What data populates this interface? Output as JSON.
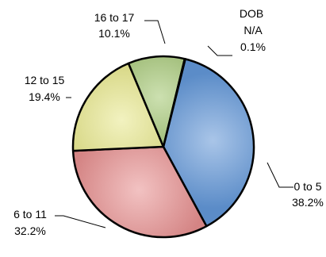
{
  "chart_data": {
    "type": "pie",
    "title": "",
    "slices": [
      {
        "name": "0 to 5",
        "value": 38.2,
        "label": "38.2%",
        "color": "#5B8CC8",
        "highlight": "#A9C5E8"
      },
      {
        "name": "6 to 11",
        "value": 32.2,
        "label": "32.2%",
        "color": "#D48484",
        "highlight": "#F2C2C2"
      },
      {
        "name": "12 to 15",
        "value": 19.4,
        "label": "19.4%",
        "color": "#D2D27A",
        "highlight": "#F2F2C0"
      },
      {
        "name": "16 to 17",
        "value": 10.1,
        "label": "10.1%",
        "color": "#8FAF63",
        "highlight": "#CCE0B0"
      },
      {
        "name": "DOB N/A",
        "value": 0.1,
        "label": "0.1%",
        "color": "#B090C0",
        "highlight": "#D8C8E0"
      }
    ],
    "start_angle_deg": 14,
    "direction": "clockwise",
    "legend": "none",
    "data_labels": "outside with leader lines"
  }
}
